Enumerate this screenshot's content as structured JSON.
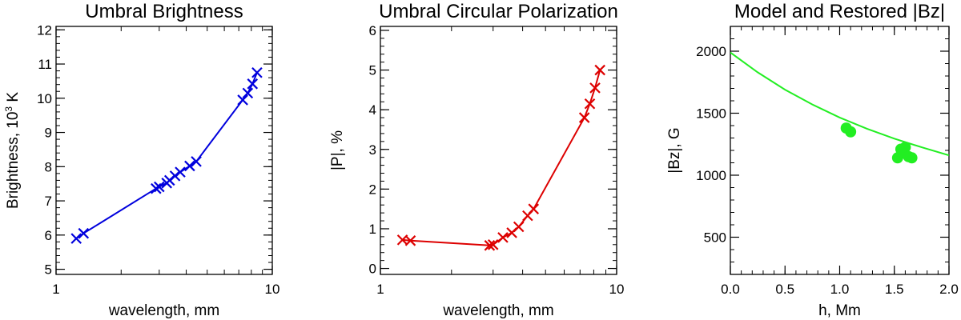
{
  "chart_data": [
    {
      "type": "line",
      "title": "Umbral Brightness",
      "xlabel": "wavelength, mm",
      "ylabel": "Brightness, 10",
      "ylabel_sup": "3",
      "ylabel_suffix": " K",
      "xscale": "log",
      "xlim": [
        1,
        10
      ],
      "ylim": [
        4.85,
        12.1
      ],
      "x_ticks": [
        1,
        10
      ],
      "x_tick_labels": [
        "1",
        "10"
      ],
      "y_ticks": [
        5,
        6,
        7,
        8,
        9,
        10,
        11,
        12
      ],
      "y_tick_labels": [
        "5",
        "6",
        "7",
        "8",
        "9",
        "10",
        "11",
        "12"
      ],
      "color": "#0000dd",
      "marker": "x",
      "series": [
        {
          "name": "Brightness",
          "x": [
            1.24,
            1.34,
            2.9,
            3.0,
            3.25,
            3.35,
            3.55,
            3.75,
            4.15,
            4.45,
            7.3,
            7.7,
            8.1,
            8.5
          ],
          "y": [
            5.9,
            6.05,
            7.36,
            7.41,
            7.52,
            7.6,
            7.73,
            7.84,
            8.02,
            8.15,
            9.95,
            10.15,
            10.42,
            10.75
          ]
        }
      ]
    },
    {
      "type": "line",
      "title": "Umbral Circular Polarization",
      "xlabel": "wavelength, mm",
      "ylabel": "|P|, %",
      "xscale": "log",
      "xlim": [
        1,
        10
      ],
      "ylim": [
        -0.15,
        6.1
      ],
      "x_ticks": [
        1,
        10
      ],
      "x_tick_labels": [
        "1",
        "10"
      ],
      "y_ticks": [
        0,
        1,
        2,
        3,
        4,
        5,
        6
      ],
      "y_tick_labels": [
        "0",
        "1",
        "2",
        "3",
        "4",
        "5",
        "6"
      ],
      "color": "#dd0000",
      "marker": "x",
      "series": [
        {
          "name": "|P|",
          "x": [
            1.24,
            1.34,
            2.9,
            3.0,
            3.3,
            3.6,
            3.85,
            4.2,
            4.45,
            7.3,
            7.7,
            8.1,
            8.5
          ],
          "y": [
            0.72,
            0.7,
            0.58,
            0.6,
            0.78,
            0.9,
            1.05,
            1.33,
            1.5,
            3.8,
            4.15,
            4.55,
            5.0
          ]
        }
      ]
    },
    {
      "type": "scatter",
      "title": "Model and Restored |Bz|",
      "xlabel": "h, Mm",
      "ylabel": "|Bz|, G",
      "xlim": [
        0,
        2.0
      ],
      "ylim": [
        200,
        2200
      ],
      "x_ticks": [
        0,
        0.5,
        1.0,
        1.5,
        2.0
      ],
      "x_tick_labels": [
        "0.0",
        "0.5",
        "1.0",
        "1.5",
        "2.0"
      ],
      "y_ticks": [
        500,
        1000,
        1500,
        2000
      ],
      "y_tick_labels": [
        "500",
        "1000",
        "1500",
        "2000"
      ],
      "color": "#22ee22",
      "series": [
        {
          "name": "Model |Bz|",
          "kind": "line",
          "x": [
            0,
            0.25,
            0.5,
            0.75,
            1.0,
            1.25,
            1.5,
            1.75,
            2.0
          ],
          "y": [
            1990,
            1830,
            1690,
            1570,
            1465,
            1375,
            1295,
            1225,
            1160
          ]
        },
        {
          "name": "Restored |Bz|",
          "kind": "points",
          "x": [
            1.06,
            1.1,
            1.53,
            1.56,
            1.6,
            1.58,
            1.63,
            1.66
          ],
          "y": [
            1380,
            1350,
            1140,
            1210,
            1225,
            1180,
            1150,
            1140
          ]
        }
      ]
    }
  ]
}
